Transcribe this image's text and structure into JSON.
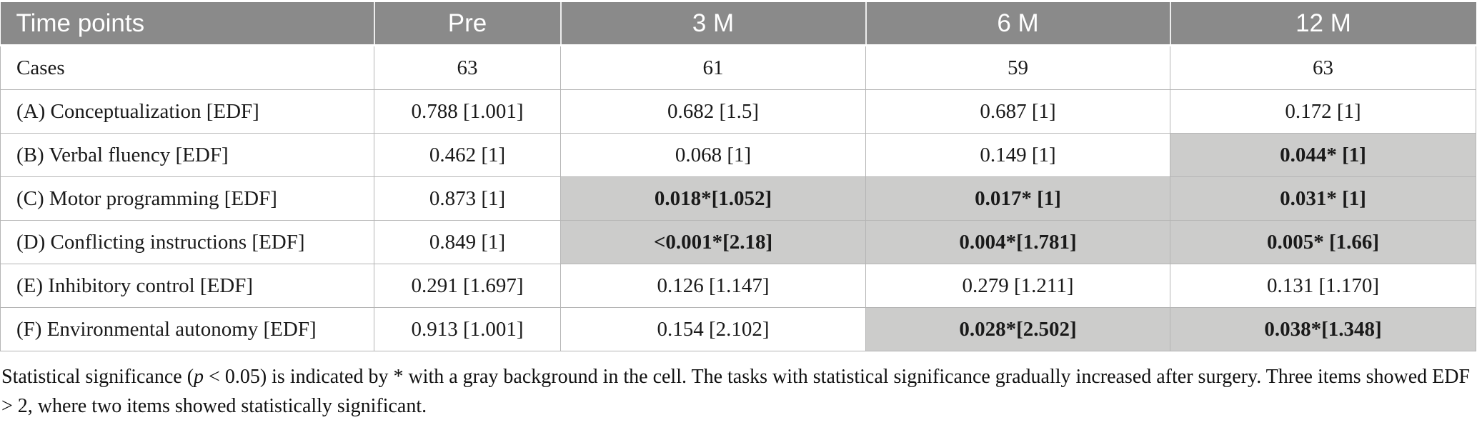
{
  "colors": {
    "header_bg": "#8a8a8a",
    "header_text": "#ffffff",
    "significant_cell_bg": "#cccccb",
    "grid_line": "#b5b5b5"
  },
  "table": {
    "columns": [
      {
        "label": "Time points"
      },
      {
        "label": "Pre"
      },
      {
        "label": "3 M"
      },
      {
        "label": "6 M"
      },
      {
        "label": "12 M"
      }
    ],
    "rows": [
      {
        "label": "Cases",
        "values": [
          {
            "text": "63",
            "significant": false
          },
          {
            "text": "61",
            "significant": false
          },
          {
            "text": "59",
            "significant": false
          },
          {
            "text": "63",
            "significant": false
          }
        ]
      },
      {
        "label": "(A) Conceptualization [EDF]",
        "values": [
          {
            "text": "0.788 [1.001]",
            "significant": false
          },
          {
            "text": "0.682 [1.5]",
            "significant": false
          },
          {
            "text": "0.687 [1]",
            "significant": false
          },
          {
            "text": "0.172 [1]",
            "significant": false
          }
        ]
      },
      {
        "label": "(B) Verbal fluency [EDF]",
        "values": [
          {
            "text": "0.462 [1]",
            "significant": false
          },
          {
            "text": "0.068 [1]",
            "significant": false
          },
          {
            "text": "0.149 [1]",
            "significant": false
          },
          {
            "text": "0.044* [1]",
            "significant": true
          }
        ]
      },
      {
        "label": "(C) Motor programming [EDF]",
        "values": [
          {
            "text": "0.873 [1]",
            "significant": false
          },
          {
            "text": "0.018*[1.052]",
            "significant": true
          },
          {
            "text": "0.017* [1]",
            "significant": true
          },
          {
            "text": "0.031* [1]",
            "significant": true
          }
        ]
      },
      {
        "label": "(D) Conflicting instructions [EDF]",
        "values": [
          {
            "text": "0.849 [1]",
            "significant": false
          },
          {
            "text": "<0.001*[2.18]",
            "significant": true
          },
          {
            "text": "0.004*[1.781]",
            "significant": true
          },
          {
            "text": "0.005* [1.66]",
            "significant": true
          }
        ]
      },
      {
        "label": "(E) Inhibitory control [EDF]",
        "values": [
          {
            "text": "0.291 [1.697]",
            "significant": false
          },
          {
            "text": "0.126 [1.147]",
            "significant": false
          },
          {
            "text": "0.279 [1.211]",
            "significant": false
          },
          {
            "text": "0.131 [1.170]",
            "significant": false
          }
        ]
      },
      {
        "label": "(F) Environmental autonomy [EDF]",
        "values": [
          {
            "text": "0.913 [1.001]",
            "significant": false
          },
          {
            "text": "0.154 [2.102]",
            "significant": false
          },
          {
            "text": "0.028*[2.502]",
            "significant": true
          },
          {
            "text": "0.038*[1.348]",
            "significant": true
          }
        ]
      }
    ]
  },
  "footnote": {
    "prefix": "Statistical significance (",
    "p_symbol": "p",
    "suffix": " < 0.05) is indicated by * with a gray background in the cell. The tasks with statistical significance gradually increased after surgery. Three items showed EDF > 2, where two items showed statistically significant."
  }
}
